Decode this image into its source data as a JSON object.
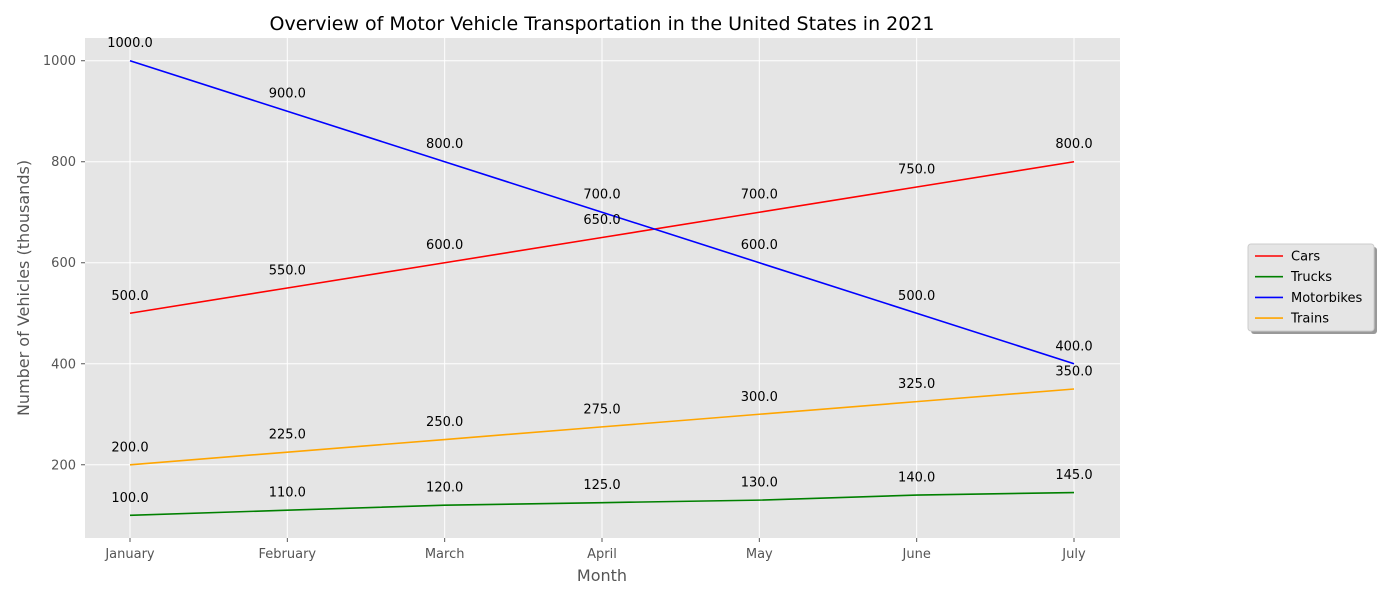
{
  "chart_data": {
    "type": "line",
    "title": "Overview of Motor Vehicle Transportation in the United States in 2021",
    "xlabel": "Month",
    "ylabel": "Number of Vehicles (thousands)",
    "categories": [
      "January",
      "February",
      "March",
      "April",
      "May",
      "June",
      "July"
    ],
    "ylim": [
      55,
      1045
    ],
    "yticks": [
      200,
      400,
      600,
      800,
      1000
    ],
    "grid": true,
    "legend_position": "right",
    "series": [
      {
        "name": "Cars",
        "color": "#ff0000",
        "values": [
          500,
          550,
          600,
          650,
          700,
          750,
          800
        ]
      },
      {
        "name": "Trucks",
        "color": "#008000",
        "values": [
          100,
          110,
          120,
          125,
          130,
          140,
          145
        ]
      },
      {
        "name": "Motorbikes",
        "color": "#0000ff",
        "values": [
          1000,
          900,
          800,
          700,
          600,
          500,
          400
        ]
      },
      {
        "name": "Trains",
        "color": "#ffa500",
        "values": [
          200,
          225,
          250,
          275,
          300,
          325,
          350
        ]
      }
    ]
  }
}
